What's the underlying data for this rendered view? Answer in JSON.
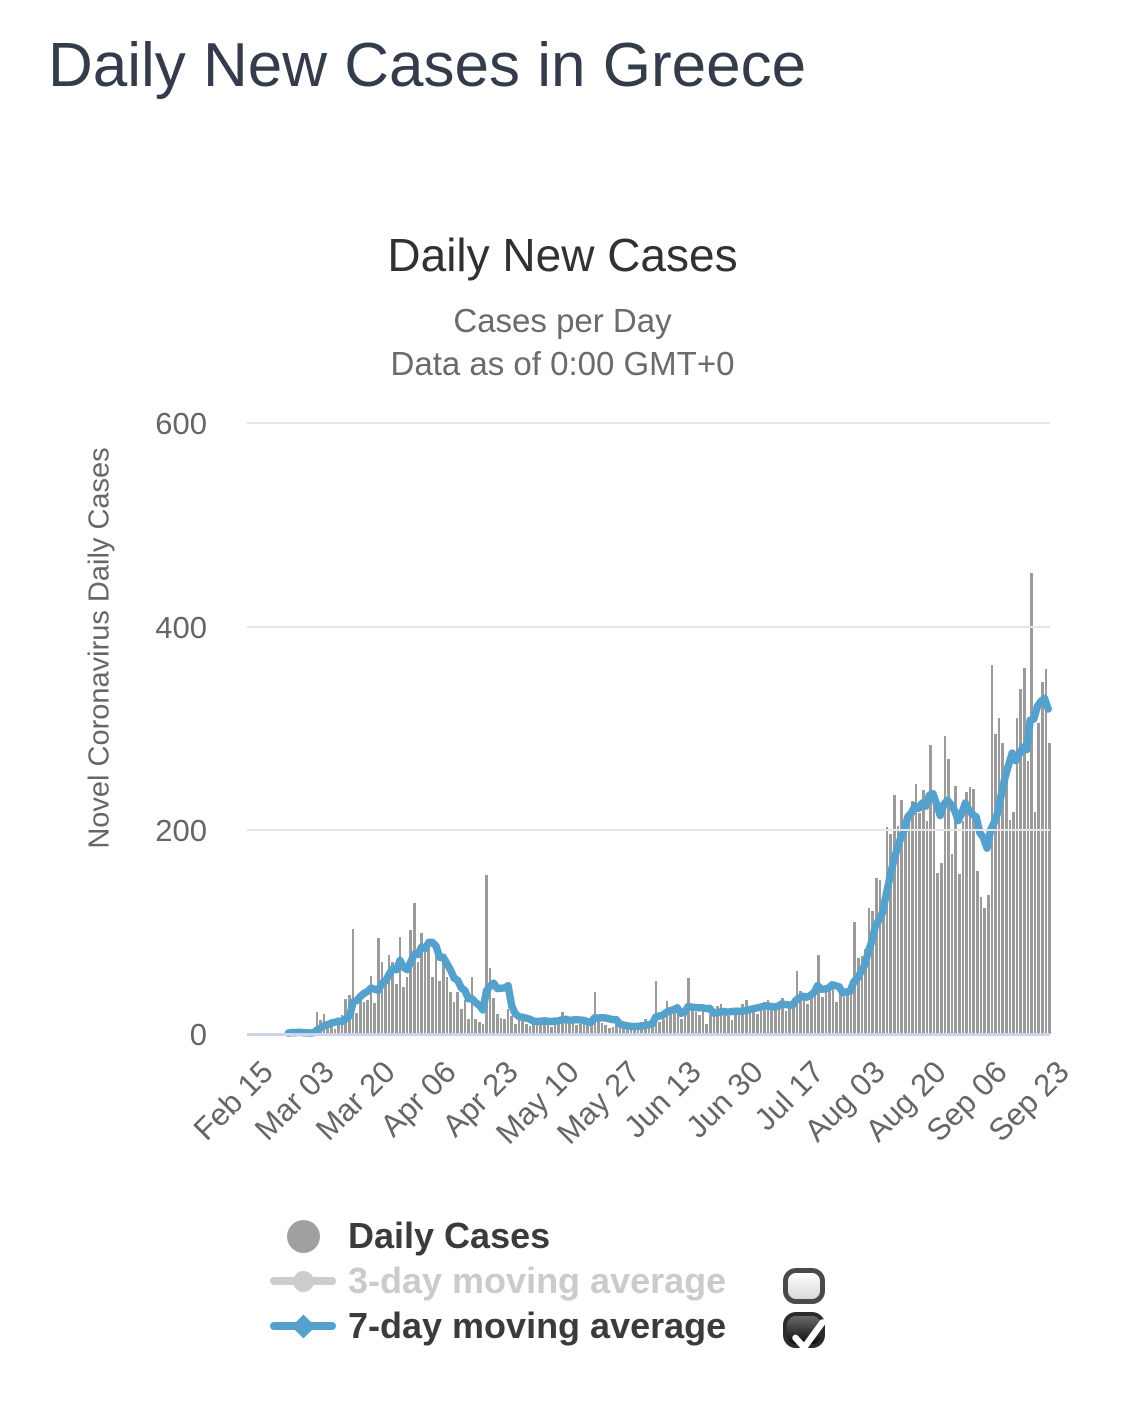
{
  "page": {
    "title": "Daily New Cases in Greece"
  },
  "chart_data": {
    "type": "bar",
    "title": "Daily New Cases",
    "subtitle_line1": "Cases per Day",
    "subtitle_line2": "Data as of 0:00 GMT+0",
    "ylabel": "Novel Coronavirus Daily Cases",
    "xlabel": "",
    "ylim": [
      0,
      600
    ],
    "yticks": [
      0,
      200,
      400,
      600
    ],
    "grid": "horizontal",
    "legend_position": "bottom",
    "start_label": "Feb 15",
    "xticks": [
      {
        "label": "Feb 15",
        "day": 0
      },
      {
        "label": "Mar 03",
        "day": 17
      },
      {
        "label": "Mar 20",
        "day": 34
      },
      {
        "label": "Apr 06",
        "day": 51
      },
      {
        "label": "Apr 23",
        "day": 68
      },
      {
        "label": "May 10",
        "day": 85
      },
      {
        "label": "May 27",
        "day": 102
      },
      {
        "label": "Jun 13",
        "day": 119
      },
      {
        "label": "Jun 30",
        "day": 136
      },
      {
        "label": "Jul 17",
        "day": 153
      },
      {
        "label": "Aug 03",
        "day": 170
      },
      {
        "label": "Aug 20",
        "day": 187
      },
      {
        "label": "Sep 06",
        "day": 204
      },
      {
        "label": "Sep 23",
        "day": 221
      }
    ],
    "series": [
      {
        "name": "Daily Cases",
        "type": "bar",
        "color": "#9b9b9b",
        "visible": true,
        "values": [
          0,
          0,
          0,
          0,
          0,
          0,
          0,
          0,
          0,
          0,
          0,
          1,
          2,
          1,
          3,
          0,
          0,
          0,
          2,
          22,
          14,
          20,
          7,
          11,
          5,
          10,
          19,
          34,
          38,
          103,
          21,
          33,
          31,
          33,
          57,
          30,
          94,
          71,
          48,
          78,
          71,
          49,
          95,
          46,
          56,
          102,
          129,
          71,
          99,
          86,
          87,
          56,
          77,
          52,
          71,
          56,
          41,
          31,
          41,
          25,
          33,
          15,
          56,
          15,
          12,
          10,
          156,
          65,
          35,
          20,
          16,
          15,
          25,
          18,
          10,
          16,
          15,
          10,
          8,
          12,
          15,
          12,
          17,
          14,
          7,
          12,
          14,
          22,
          15,
          10,
          16,
          9,
          10,
          12,
          13,
          10,
          41,
          15,
          11,
          9,
          6,
          7,
          10,
          12,
          7,
          6,
          5,
          4,
          9,
          12,
          15,
          13,
          11,
          52,
          12,
          15,
          32,
          25,
          21,
          23,
          15,
          18,
          55,
          28,
          22,
          19,
          23,
          10,
          19,
          24,
          28,
          29,
          22,
          18,
          14,
          21,
          24,
          29,
          33,
          28,
          24,
          20,
          26,
          31,
          33,
          27,
          25,
          29,
          35,
          23,
          28,
          31,
          62,
          42,
          38,
          29,
          36,
          48,
          78,
          36,
          44,
          45,
          51,
          31,
          39,
          36,
          44,
          48,
          110,
          75,
          77,
          83,
          124,
          121,
          153,
          151,
          126,
          203,
          196,
          235,
          204,
          230,
          208,
          217,
          229,
          246,
          217,
          240,
          209,
          284,
          226,
          158,
          168,
          293,
          270,
          177,
          244,
          157,
          209,
          238,
          243,
          241,
          160,
          135,
          124,
          137,
          362,
          295,
          310,
          286,
          250,
          210,
          218,
          310,
          339,
          359,
          268,
          453,
          218,
          305,
          346,
          358,
          286
        ]
      },
      {
        "name": "3-day moving average",
        "type": "line",
        "color": "#cdcdcd",
        "visible": false,
        "derived_from": "Daily Cases",
        "window": 3
      },
      {
        "name": "7-day moving average",
        "type": "line",
        "color": "#55a1ce",
        "visible": true,
        "derived_from": "Daily Cases",
        "window": 7
      }
    ]
  },
  "legend": {
    "checkbox_3day": "unchecked",
    "checkbox_7day": "checked"
  },
  "colors": {
    "bar": "#9b9b9b",
    "ma7_line": "#55a1ce",
    "ma3_legend": "#cdcdcd",
    "gridline": "#e6e6e6",
    "x_axis_line": "#ccd6eb",
    "tick_text": "#666666",
    "title_text": "#313131",
    "page_title_text": "#343c4c"
  }
}
